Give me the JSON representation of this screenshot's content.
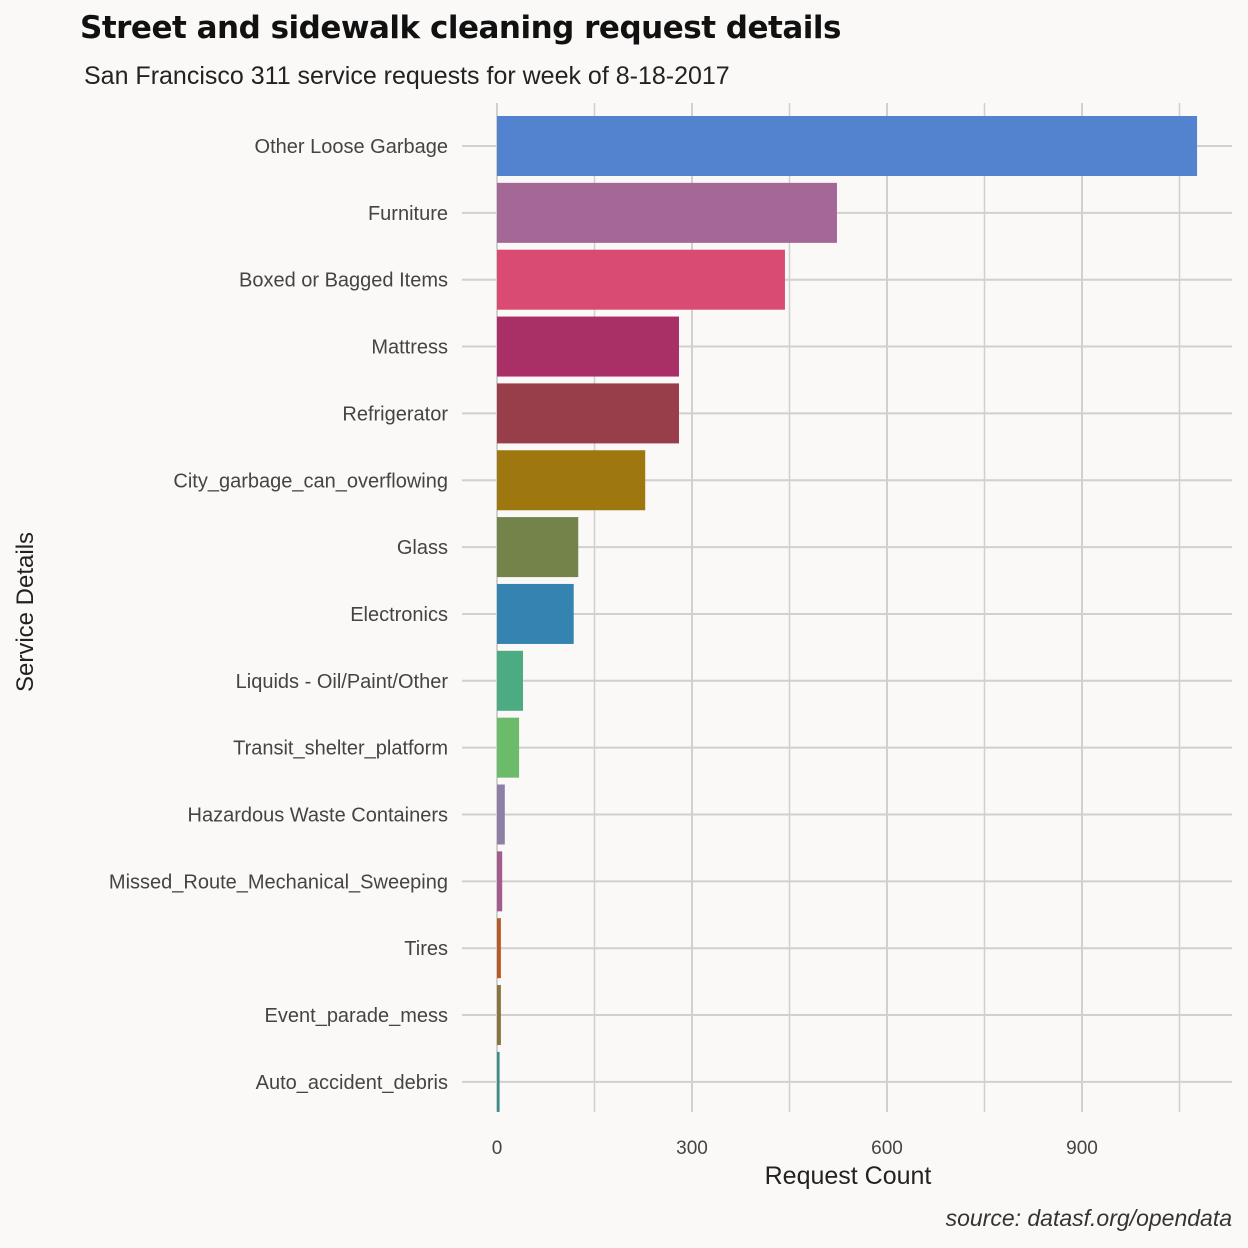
{
  "chart_data": {
    "type": "bar",
    "orientation": "horizontal",
    "title": "Street and sidewalk cleaning request details",
    "subtitle": "San Francisco 311 service requests for week of 8-18-2017",
    "xlabel": "Request Count",
    "ylabel": "Service Details",
    "caption": "source: datasf.org/opendata",
    "xlim": [
      0,
      1130
    ],
    "xticks": [
      0,
      300,
      600,
      900
    ],
    "xtick_labels": [
      "0",
      "300",
      "600",
      "900"
    ],
    "grid": true,
    "legend": "none",
    "categories": [
      "Other Loose Garbage",
      "Furniture",
      "Boxed or Bagged Items",
      "Mattress",
      "Refrigerator",
      "City_garbage_can_overflowing",
      "Glass",
      "Electronics",
      "Liquids - Oil/Paint/Other",
      "Transit_shelter_platform",
      "Hazardous Waste Containers",
      "Missed_Route_Mechanical_Sweeping",
      "Tires",
      "Event_parade_mess",
      "Auto_accident_debris"
    ],
    "values": [
      1077,
      523,
      443,
      280,
      280,
      228,
      125,
      118,
      40,
      34,
      12,
      8,
      6,
      6,
      4
    ],
    "colors": [
      "#5383cf",
      "#a46796",
      "#d94b71",
      "#a92f67",
      "#983e4a",
      "#9f770f",
      "#73834a",
      "#3583b1",
      "#4dab82",
      "#6cbb6a",
      "#8d7fa6",
      "#a45b8e",
      "#b85a28",
      "#88763e",
      "#3f8c86"
    ]
  }
}
